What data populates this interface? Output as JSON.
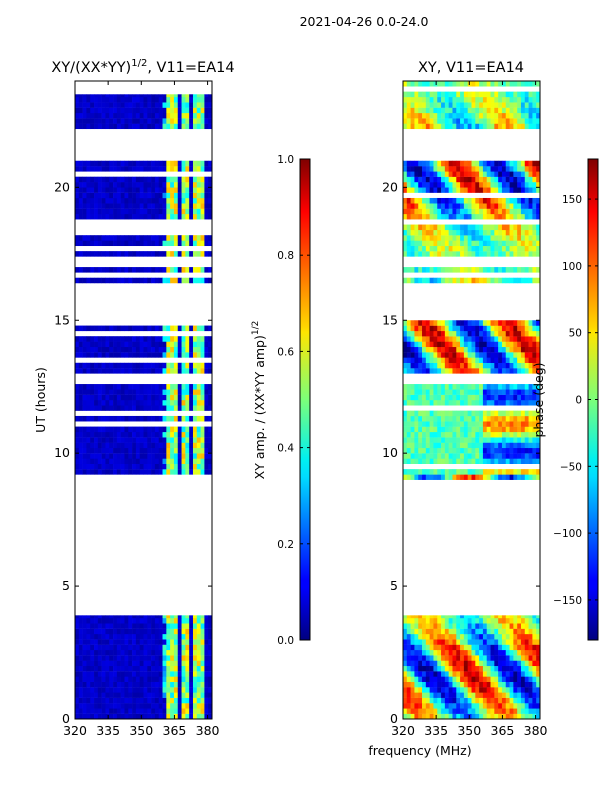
{
  "suptitle": "2021-04-26 0.0-24.0",
  "chart_data": [
    {
      "type": "heatmap",
      "title": "XY/(XX*YY)^(1/2), V11=EA14",
      "title_main": "XY/(XX*YY)",
      "title_sup": "1/2",
      "title_tail": ", V11=EA14",
      "xlabel": "",
      "ylabel": "UT (hours)",
      "xlim": [
        320,
        382
      ],
      "ylim": [
        0,
        24
      ],
      "xticks": [
        320,
        335,
        350,
        365,
        380
      ],
      "yticks": [
        0,
        5,
        10,
        15,
        20
      ],
      "colormap": "jet",
      "clim": [
        0.0,
        1.0
      ],
      "data_bands_hours": [
        [
          0.0,
          1.0
        ],
        [
          1.0,
          3.9
        ],
        [
          9.0,
          12.6
        ],
        [
          13.0,
          15.0
        ],
        [
          16.4,
          17.0
        ],
        [
          17.4,
          18.6
        ],
        [
          18.8,
          21.0
        ],
        [
          22.2,
          23.5
        ]
      ],
      "high_value_columns_mhz": [
        [
          362,
          366
        ],
        [
          368,
          372
        ],
        [
          374,
          378
        ]
      ],
      "colorbar": {
        "label": "XY amp. / (XX*YY amp)^(1/2)",
        "label_main": "XY amp. / (XX*YY amp)",
        "label_sup": "1/2",
        "ticks": [
          0.0,
          0.2,
          0.4,
          0.6,
          0.8,
          1.0
        ],
        "tick_labels": [
          "0.0",
          "0.2",
          "0.4",
          "0.6",
          "0.8",
          "1.0"
        ]
      }
    },
    {
      "type": "heatmap",
      "title": "XY, V11=EA14",
      "xlabel": "frequency (MHz)",
      "ylabel": "",
      "xlim": [
        320,
        382
      ],
      "ylim": [
        0,
        24
      ],
      "xticks": [
        320,
        335,
        350,
        365,
        380
      ],
      "yticks": [
        0,
        5,
        10,
        15,
        20
      ],
      "colormap": "jet",
      "clim": [
        -180,
        180
      ],
      "data_bands_hours": [
        [
          0.0,
          1.0
        ],
        [
          1.0,
          3.9
        ],
        [
          9.0,
          12.6
        ],
        [
          13.0,
          15.0
        ],
        [
          16.4,
          17.0
        ],
        [
          17.4,
          18.6
        ],
        [
          18.8,
          21.0
        ],
        [
          22.2,
          24.0
        ]
      ],
      "colorbar": {
        "label": "phase (deg)",
        "ticks": [
          -150,
          -100,
          -50,
          0,
          50,
          100,
          150
        ],
        "tick_labels": [
          "−150",
          "−100",
          "−50",
          "0",
          "50",
          "100",
          "150"
        ]
      }
    }
  ]
}
